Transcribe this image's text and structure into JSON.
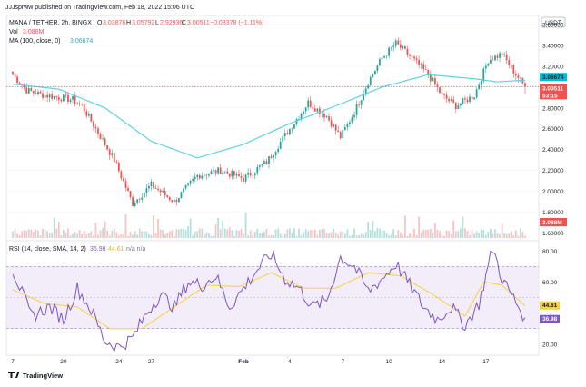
{
  "header": {
    "published": "JJJsprww published on TradingView.com, Feb 18, 2022 15:06 UTC"
  },
  "legend": {
    "symbol": "MANA / TETHER, 2h, BINGX",
    "o_label": "O",
    "o": "3.03876",
    "h_label": "H",
    "h": "3.05792",
    "l_label": "L",
    "l": "2.92936",
    "c_label": "C",
    "c": "3.00511",
    "change": "−0.03378 (−1.11%)",
    "vol_label": "Vol",
    "vol": "3.088M",
    "ma_label": "MA (100, close, 0)",
    "ma": "3.06674",
    "rsi_label": "RSI (14, close, SMA, 14, 2)",
    "rsi": "36.98",
    "rsi_ma": "44.61",
    "rsi_na": "n/a n/a"
  },
  "currency": "USDT",
  "brand": "TradingView",
  "tags": {
    "ma": "3.06674",
    "close": "3.00511",
    "countdown": "53:15",
    "volume": "3.088M",
    "rsi_ma": "44.61",
    "rsi": "36.98"
  },
  "colors": {
    "up": "#26a69a",
    "down": "#ef5350",
    "ma": "#5fd0e6",
    "rsi": "#7e57c2",
    "rsi_ma": "#f5d142",
    "rsi_band": "#ede7f6"
  },
  "chart_data": [
    {
      "type": "candlestick",
      "title": "MANA / TETHER, 2h, BINGX",
      "y_ticks": [
        "3.60000",
        "3.40000",
        "3.20000",
        "3.00000",
        "2.80000",
        "2.60000",
        "2.40000",
        "2.20000",
        "2.00000",
        "1.80000",
        "1.60000"
      ],
      "ylim": [
        1.55,
        3.68
      ],
      "x_ticks": [
        "7",
        "20",
        "24",
        "27",
        "Feb",
        "4",
        "7",
        "10",
        "14",
        "17"
      ],
      "anchors": {
        "time": [
          0,
          6,
          12,
          20,
          26,
          30,
          36,
          44,
          52,
          60,
          70,
          80,
          90,
          100,
          110,
          120,
          128,
          136,
          142,
          148,
          154,
          160,
          166,
          172,
          180,
          186,
          192,
          200,
          206,
          212,
          218,
          222
        ],
        "close": [
          3.12,
          2.97,
          2.93,
          2.9,
          2.88,
          2.82,
          2.6,
          2.3,
          1.88,
          2.06,
          1.9,
          2.15,
          2.2,
          2.12,
          2.28,
          2.6,
          2.85,
          2.72,
          2.52,
          2.76,
          3.05,
          3.28,
          3.42,
          3.3,
          3.12,
          2.92,
          2.82,
          2.92,
          3.26,
          3.32,
          3.12,
          3.00511
        ]
      },
      "last": {
        "open": 3.03876,
        "high": 3.05792,
        "low": 2.92936,
        "close": 3.00511
      },
      "ma_100": {
        "time": [
          0,
          20,
          40,
          60,
          80,
          100,
          120,
          140,
          160,
          180,
          200,
          210,
          222
        ],
        "value": [
          3.03,
          2.98,
          2.8,
          2.48,
          2.32,
          2.45,
          2.65,
          2.82,
          3.0,
          3.12,
          3.08,
          3.05,
          3.06674
        ]
      },
      "volume": {
        "last": "3.088M"
      }
    },
    {
      "type": "line",
      "title": "RSI (14, close, SMA, 14, 2)",
      "y_ticks": [
        "80.00",
        "60.00",
        "20.00"
      ],
      "ylim": [
        14,
        86
      ],
      "band": [
        30,
        70
      ],
      "mid": 50,
      "rsi": {
        "time": [
          0,
          8,
          16,
          22,
          28,
          34,
          40,
          46,
          52,
          58,
          64,
          70,
          76,
          82,
          88,
          94,
          100,
          106,
          112,
          118,
          124,
          130,
          136,
          142,
          148,
          154,
          160,
          166,
          172,
          178,
          184,
          190,
          196,
          202,
          208,
          212,
          216,
          222
        ],
        "value": [
          68,
          38,
          44,
          36,
          56,
          42,
          22,
          18,
          24,
          40,
          52,
          44,
          60,
          58,
          64,
          44,
          56,
          68,
          78,
          62,
          56,
          44,
          48,
          76,
          70,
          54,
          62,
          72,
          58,
          44,
          36,
          44,
          32,
          46,
          82,
          62,
          52,
          36.98
        ]
      },
      "rsi_ma": {
        "time": [
          0,
          14,
          28,
          42,
          56,
          70,
          84,
          98,
          112,
          126,
          140,
          154,
          168,
          182,
          196,
          204,
          212,
          222
        ],
        "value": [
          55,
          46,
          44,
          30,
          30,
          44,
          58,
          57,
          66,
          56,
          56,
          66,
          64,
          52,
          38,
          60,
          58,
          44.61
        ]
      }
    }
  ]
}
